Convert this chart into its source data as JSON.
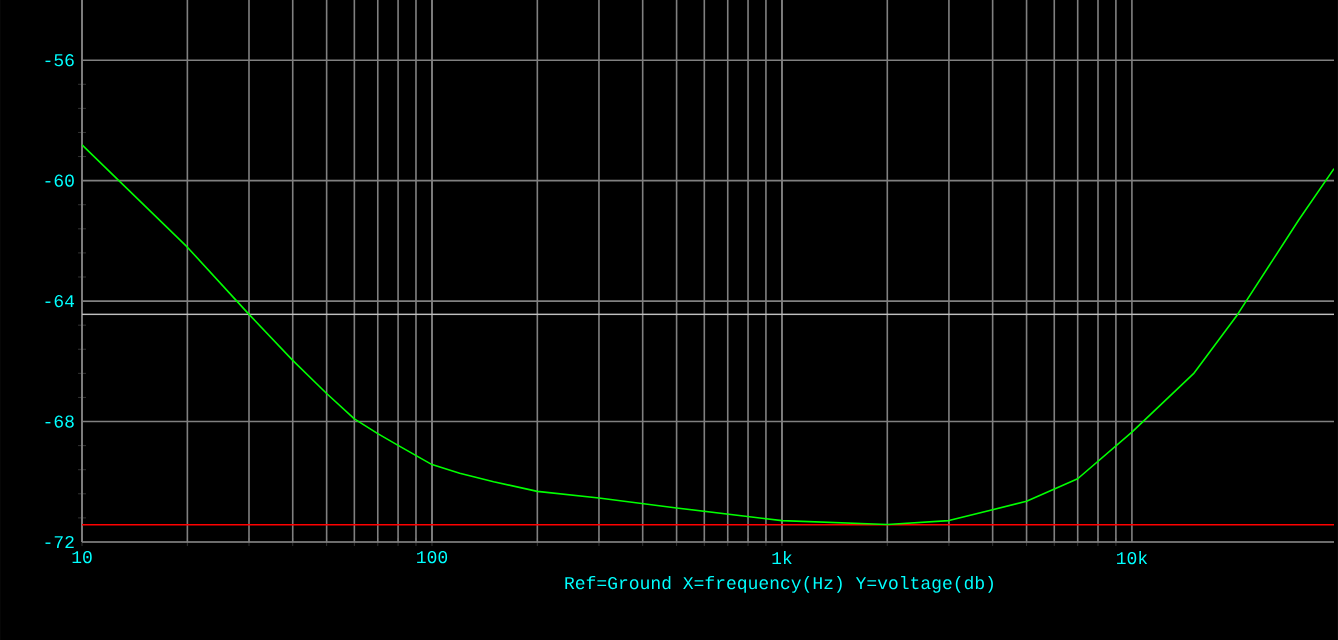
{
  "chart_data": {
    "type": "line",
    "xlabel": "Ref=Ground  X=frequency(Hz) Y=voltage(db)",
    "log": "x",
    "grid": true,
    "marker": "none",
    "line_style": "solid",
    "xlim": [
      10,
      37800
    ],
    "ylim": [
      -72,
      -54
    ],
    "xticks": [
      10,
      100,
      {
        "value": 1000,
        "label": "1k"
      },
      {
        "value": 10000,
        "label": "10k"
      }
    ],
    "yticks": [
      -72,
      -68,
      -64,
      -60,
      -56
    ],
    "ref_lines": [
      {
        "axis": "y",
        "value": -64.44,
        "color": "#c0c0c0"
      },
      {
        "axis": "y",
        "value": -71.43,
        "color": "#ff0000"
      }
    ],
    "series": [
      {
        "color": "#00ff00",
        "x": [
          10,
          20,
          30,
          40,
          50,
          60,
          70,
          80,
          100,
          120,
          150,
          200,
          300,
          500,
          1000,
          2000,
          3000,
          5000,
          7000,
          10000,
          15000,
          20000,
          30000,
          37800
        ],
        "values": [
          -58.81,
          -62.21,
          -64.44,
          -65.97,
          -67.07,
          -67.91,
          -68.4,
          -68.79,
          -69.43,
          -69.72,
          -70.0,
          -70.32,
          -70.54,
          -70.87,
          -71.29,
          -71.42,
          -71.29,
          -70.65,
          -69.9,
          -68.35,
          -66.41,
          -64.46,
          -61.3,
          -59.6
        ]
      }
    ]
  }
}
